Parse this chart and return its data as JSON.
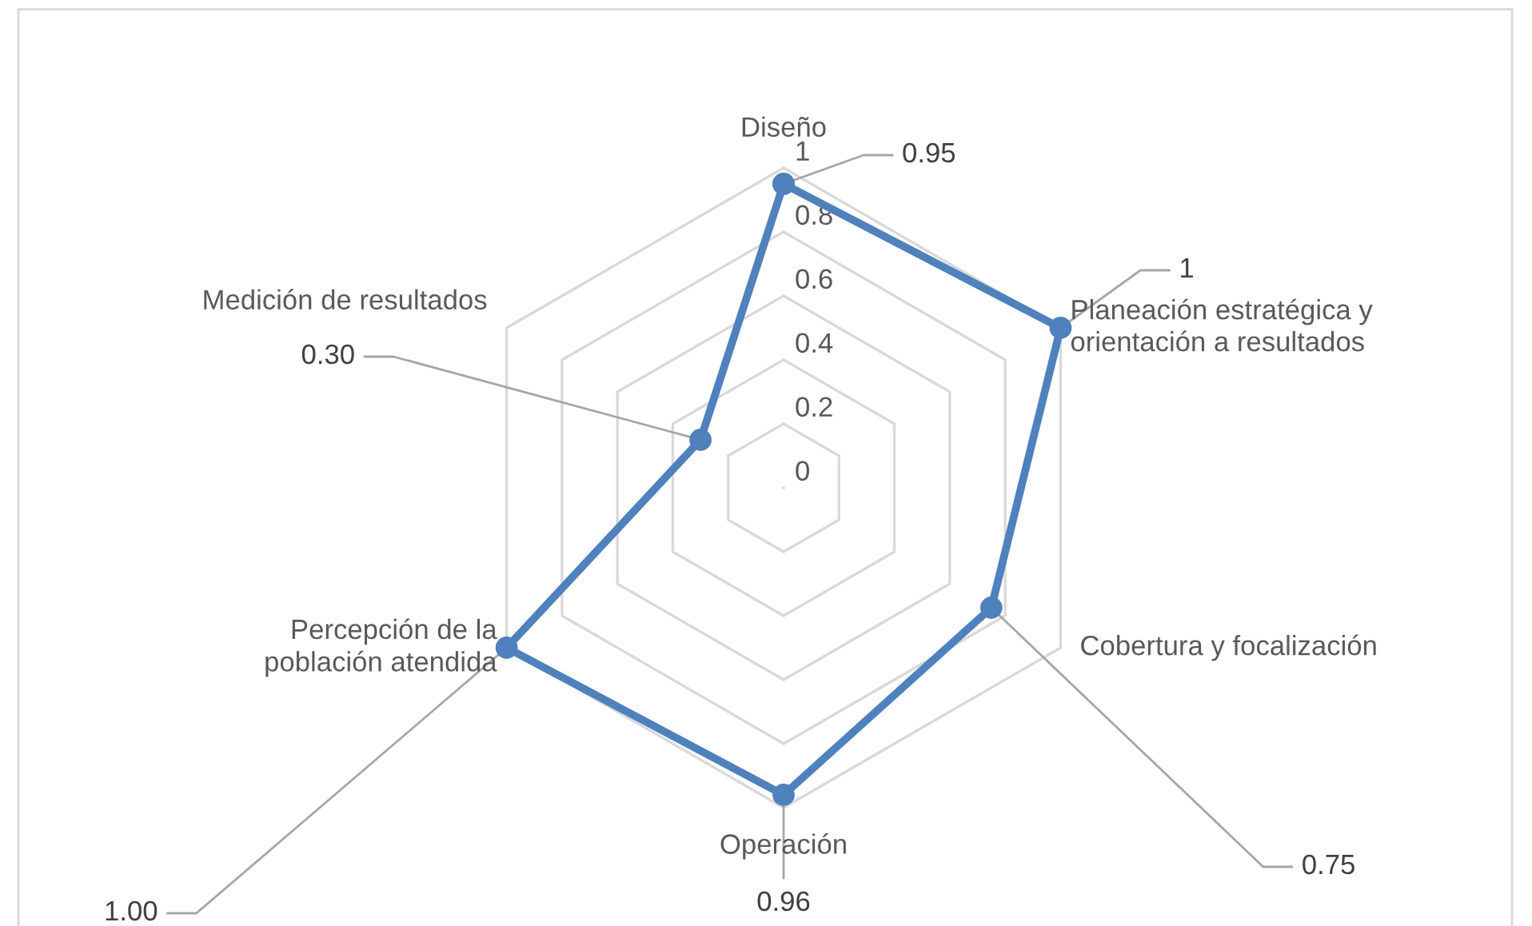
{
  "chart_data": {
    "type": "radar",
    "categories": [
      "Diseño",
      "Planeación estratégica y\norientación a resultados",
      "Cobertura y focalización",
      "Operación",
      "Percepción de la\npoblación atendida",
      "Medición de resultados"
    ],
    "series": [
      {
        "color": "#4f81bd",
        "values": [
          0.95,
          1,
          0.75,
          0.96,
          1.0,
          0.3
        ],
        "value_labels": [
          "0.95",
          "1",
          "0.75",
          "0.96",
          "1.00",
          "0.30"
        ]
      }
    ],
    "ylim": [
      0,
      1
    ],
    "yticks": [
      0,
      0.2,
      0.4,
      0.6,
      0.8,
      1
    ],
    "grid": true,
    "marker": "circle",
    "line_style": "solid"
  }
}
